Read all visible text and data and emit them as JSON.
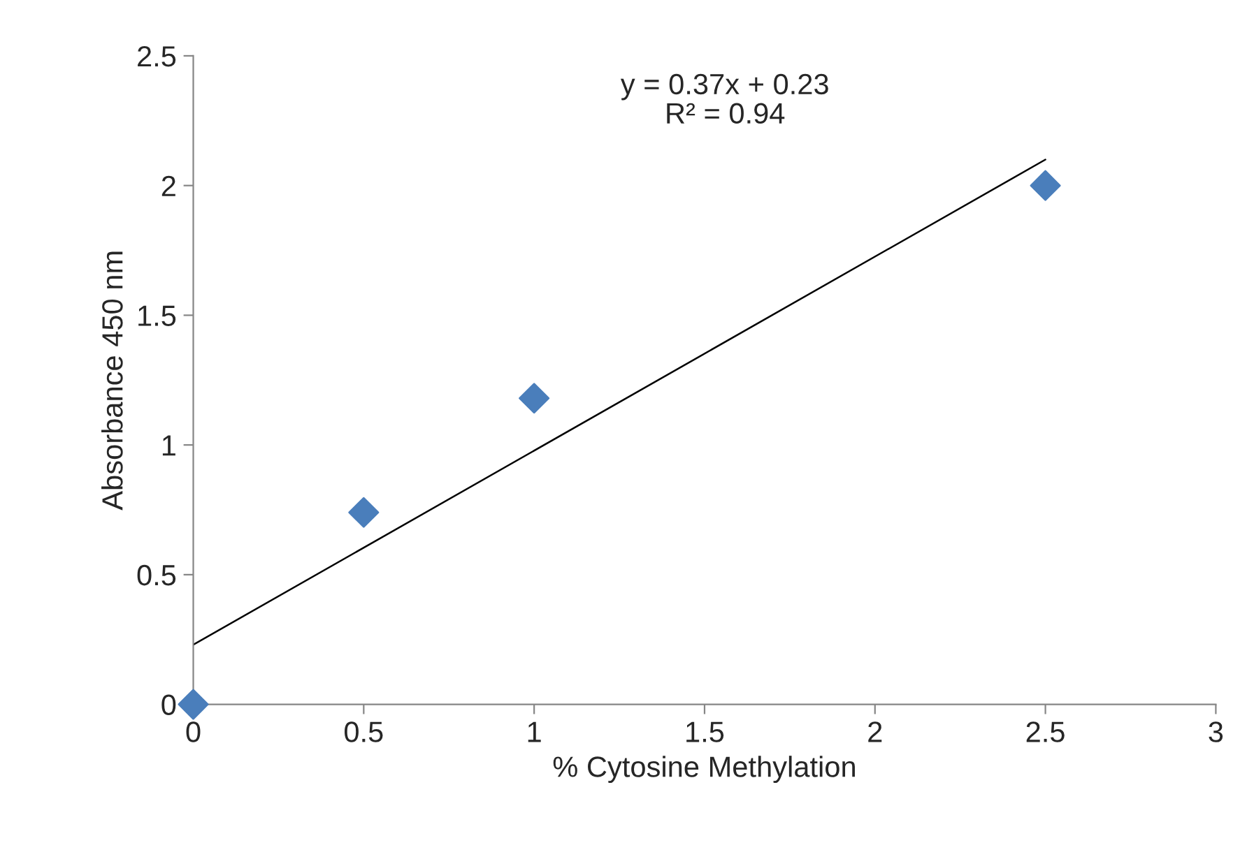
{
  "chart_data": {
    "type": "scatter",
    "xlabel": "% Cytosine Methylation",
    "ylabel": "Absorbance 450 nm",
    "annotations": [
      "y = 0.37x + 0.23\nR² = 0.94"
    ],
    "series": [
      {
        "color": "#4a7ebb",
        "marker": "diamond",
        "x": [
          0,
          0.5,
          1,
          2.5
        ],
        "values": [
          0,
          0.74,
          1.18,
          2.0
        ]
      },
      {
        "type": "line",
        "color": "#000000",
        "marker": "none",
        "line_style": "solid",
        "x": [
          0,
          2.5
        ],
        "values": [
          0.23,
          2.1
        ]
      }
    ],
    "xlim": [
      0,
      3
    ],
    "xticks": [
      0,
      0.5,
      1,
      1.5,
      2,
      2.5,
      3
    ],
    "ylim": [
      0,
      2.5
    ],
    "yticks": [
      0,
      0.5,
      1,
      1.5,
      2,
      2.5
    ],
    "grid": false,
    "legend": false
  }
}
